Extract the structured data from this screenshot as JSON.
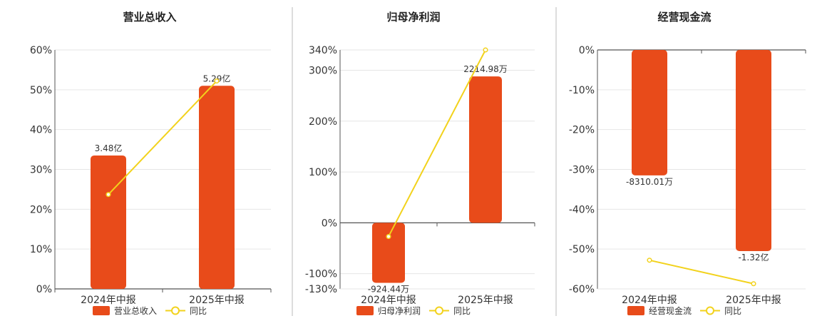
{
  "colors": {
    "bar": "#E84B1A",
    "line": "#F2D21C",
    "grid": "#E6E6E6",
    "axis": "#555555",
    "divider": "#BBBBBB"
  },
  "chart_data": [
    {
      "type": "bar",
      "title": "营业总收入",
      "categories": [
        "2024年中报",
        "2025年中报"
      ],
      "series": [
        {
          "name": "营业总收入",
          "kind": "bar",
          "values": [
            33.5,
            51.0
          ],
          "labels": [
            "3.48亿",
            "5.29亿"
          ]
        },
        {
          "name": "同比",
          "kind": "line",
          "values": [
            23.7,
            52.2
          ]
        }
      ],
      "ylim": [
        0,
        60
      ],
      "yticks": [
        0,
        10,
        20,
        30,
        40,
        50,
        60
      ],
      "ytick_labels": [
        "0%",
        "10%",
        "20%",
        "30%",
        "40%",
        "50%",
        "60%"
      ],
      "grid": true,
      "legend": "bottom"
    },
    {
      "type": "bar",
      "title": "归母净利润",
      "categories": [
        "2024年中报",
        "2025年中报"
      ],
      "series": [
        {
          "name": "归母净利润",
          "kind": "bar",
          "values": [
            -118,
            288
          ],
          "labels": [
            "-924.44万",
            "2214.98万"
          ]
        },
        {
          "name": "同比",
          "kind": "line",
          "values": [
            -27,
            340
          ]
        }
      ],
      "ylim": [
        -130,
        340
      ],
      "yticks": [
        -130,
        -100,
        0,
        100,
        200,
        300,
        340
      ],
      "ytick_labels": [
        "-130%",
        "-100%",
        "0%",
        "100%",
        "200%",
        "300%",
        "340%"
      ],
      "grid": true,
      "legend": "bottom"
    },
    {
      "type": "bar",
      "title": "经营现金流",
      "categories": [
        "2024年中报",
        "2025年中报"
      ],
      "series": [
        {
          "name": "经营现金流",
          "kind": "bar",
          "values": [
            -31.5,
            -50.5
          ],
          "labels": [
            "-8310.01万",
            "-1.32亿"
          ]
        },
        {
          "name": "同比",
          "kind": "line",
          "values": [
            -52.8,
            -58.7
          ]
        }
      ],
      "ylim": [
        -60,
        0
      ],
      "yticks": [
        -60,
        -50,
        -40,
        -30,
        -20,
        -10,
        0
      ],
      "ytick_labels": [
        "-60%",
        "-50%",
        "-40%",
        "-30%",
        "-20%",
        "-10%",
        "0%"
      ],
      "grid": true,
      "legend": "bottom"
    }
  ]
}
